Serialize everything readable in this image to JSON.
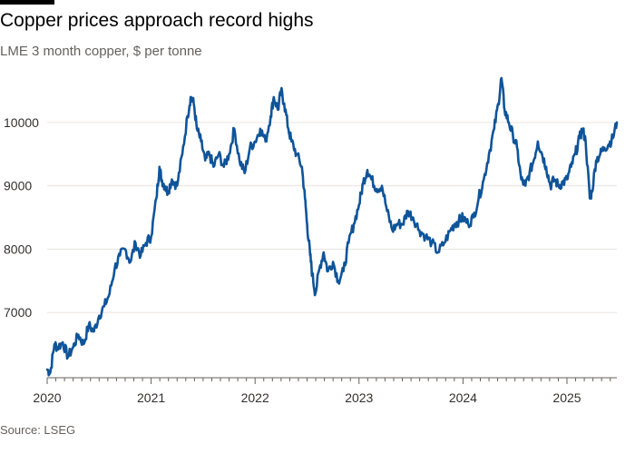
{
  "chart_data": {
    "type": "line",
    "title": "Copper prices approach record highs",
    "subtitle": "LME 3 month copper, $ per tonne",
    "source": "Source: LSEG",
    "xlabel": "",
    "ylabel": "",
    "xlim": [
      2020.0,
      2025.48
    ],
    "ylim": [
      6000,
      10900
    ],
    "y_ticks": [
      7000,
      8000,
      9000,
      10000
    ],
    "x_ticks": [
      2020,
      2021,
      2022,
      2023,
      2024,
      2025
    ],
    "grid": "horizontal",
    "series": [
      {
        "name": "LME 3 month copper",
        "color": "#0f5499",
        "points": [
          [
            2020.0,
            6100
          ],
          [
            2020.03,
            6050
          ],
          [
            2020.07,
            6500
          ],
          [
            2020.1,
            6450
          ],
          [
            2020.15,
            6530
          ],
          [
            2020.2,
            6300
          ],
          [
            2020.25,
            6450
          ],
          [
            2020.3,
            6650
          ],
          [
            2020.35,
            6500
          ],
          [
            2020.4,
            6800
          ],
          [
            2020.45,
            6700
          ],
          [
            2020.5,
            6950
          ],
          [
            2020.55,
            7100
          ],
          [
            2020.6,
            7300
          ],
          [
            2020.65,
            7700
          ],
          [
            2020.7,
            7900
          ],
          [
            2020.75,
            8000
          ],
          [
            2020.8,
            7800
          ],
          [
            2020.85,
            8100
          ],
          [
            2020.9,
            7900
          ],
          [
            2020.95,
            8100
          ],
          [
            2021.0,
            8200
          ],
          [
            2021.05,
            8800
          ],
          [
            2021.08,
            9300
          ],
          [
            2021.1,
            9100
          ],
          [
            2021.13,
            9000
          ],
          [
            2021.16,
            8900
          ],
          [
            2021.2,
            9100
          ],
          [
            2021.25,
            9000
          ],
          [
            2021.3,
            9500
          ],
          [
            2021.35,
            10100
          ],
          [
            2021.38,
            10400
          ],
          [
            2021.41,
            10300
          ],
          [
            2021.44,
            9900
          ],
          [
            2021.48,
            9700
          ],
          [
            2021.52,
            9400
          ],
          [
            2021.56,
            9500
          ],
          [
            2021.6,
            9300
          ],
          [
            2021.65,
            9500
          ],
          [
            2021.7,
            9300
          ],
          [
            2021.75,
            9500
          ],
          [
            2021.8,
            9900
          ],
          [
            2021.85,
            9400
          ],
          [
            2021.9,
            9200
          ],
          [
            2021.95,
            9600
          ],
          [
            2022.0,
            9700
          ],
          [
            2022.05,
            9900
          ],
          [
            2022.1,
            9700
          ],
          [
            2022.15,
            10100
          ],
          [
            2022.18,
            10400
          ],
          [
            2022.22,
            10200
          ],
          [
            2022.25,
            10500
          ],
          [
            2022.28,
            10300
          ],
          [
            2022.32,
            9900
          ],
          [
            2022.35,
            9700
          ],
          [
            2022.4,
            9500
          ],
          [
            2022.45,
            9300
          ],
          [
            2022.48,
            8800
          ],
          [
            2022.5,
            8400
          ],
          [
            2022.53,
            7900
          ],
          [
            2022.55,
            7600
          ],
          [
            2022.58,
            7300
          ],
          [
            2022.62,
            7700
          ],
          [
            2022.66,
            7950
          ],
          [
            2022.7,
            7650
          ],
          [
            2022.75,
            7800
          ],
          [
            2022.8,
            7500
          ],
          [
            2022.85,
            7650
          ],
          [
            2022.9,
            8100
          ],
          [
            2022.95,
            8400
          ],
          [
            2023.0,
            8700
          ],
          [
            2023.04,
            9050
          ],
          [
            2023.08,
            9250
          ],
          [
            2023.12,
            9100
          ],
          [
            2023.17,
            8950
          ],
          [
            2023.22,
            9000
          ],
          [
            2023.27,
            8600
          ],
          [
            2023.32,
            8300
          ],
          [
            2023.37,
            8400
          ],
          [
            2023.42,
            8400
          ],
          [
            2023.47,
            8600
          ],
          [
            2023.52,
            8500
          ],
          [
            2023.58,
            8300
          ],
          [
            2023.64,
            8200
          ],
          [
            2023.7,
            8100
          ],
          [
            2023.76,
            7950
          ],
          [
            2023.82,
            8100
          ],
          [
            2023.88,
            8300
          ],
          [
            2023.92,
            8400
          ],
          [
            2023.96,
            8450
          ],
          [
            2024.0,
            8500
          ],
          [
            2024.05,
            8400
          ],
          [
            2024.1,
            8500
          ],
          [
            2024.15,
            8800
          ],
          [
            2024.2,
            9100
          ],
          [
            2024.25,
            9500
          ],
          [
            2024.3,
            9900
          ],
          [
            2024.34,
            10300
          ],
          [
            2024.37,
            10700
          ],
          [
            2024.4,
            10200
          ],
          [
            2024.44,
            10000
          ],
          [
            2024.48,
            9800
          ],
          [
            2024.52,
            9600
          ],
          [
            2024.56,
            9100
          ],
          [
            2024.6,
            9000
          ],
          [
            2024.64,
            9200
          ],
          [
            2024.68,
            9400
          ],
          [
            2024.72,
            9700
          ],
          [
            2024.76,
            9500
          ],
          [
            2024.8,
            9300
          ],
          [
            2024.84,
            9000
          ],
          [
            2024.88,
            9100
          ],
          [
            2024.92,
            9000
          ],
          [
            2024.96,
            9050
          ],
          [
            2025.0,
            9100
          ],
          [
            2025.04,
            9300
          ],
          [
            2025.08,
            9500
          ],
          [
            2025.12,
            9750
          ],
          [
            2025.15,
            9900
          ],
          [
            2025.18,
            9700
          ],
          [
            2025.22,
            8800
          ],
          [
            2025.24,
            8900
          ],
          [
            2025.28,
            9400
          ],
          [
            2025.32,
            9500
          ],
          [
            2025.36,
            9600
          ],
          [
            2025.4,
            9650
          ],
          [
            2025.44,
            9750
          ],
          [
            2025.48,
            10000
          ]
        ]
      }
    ]
  }
}
